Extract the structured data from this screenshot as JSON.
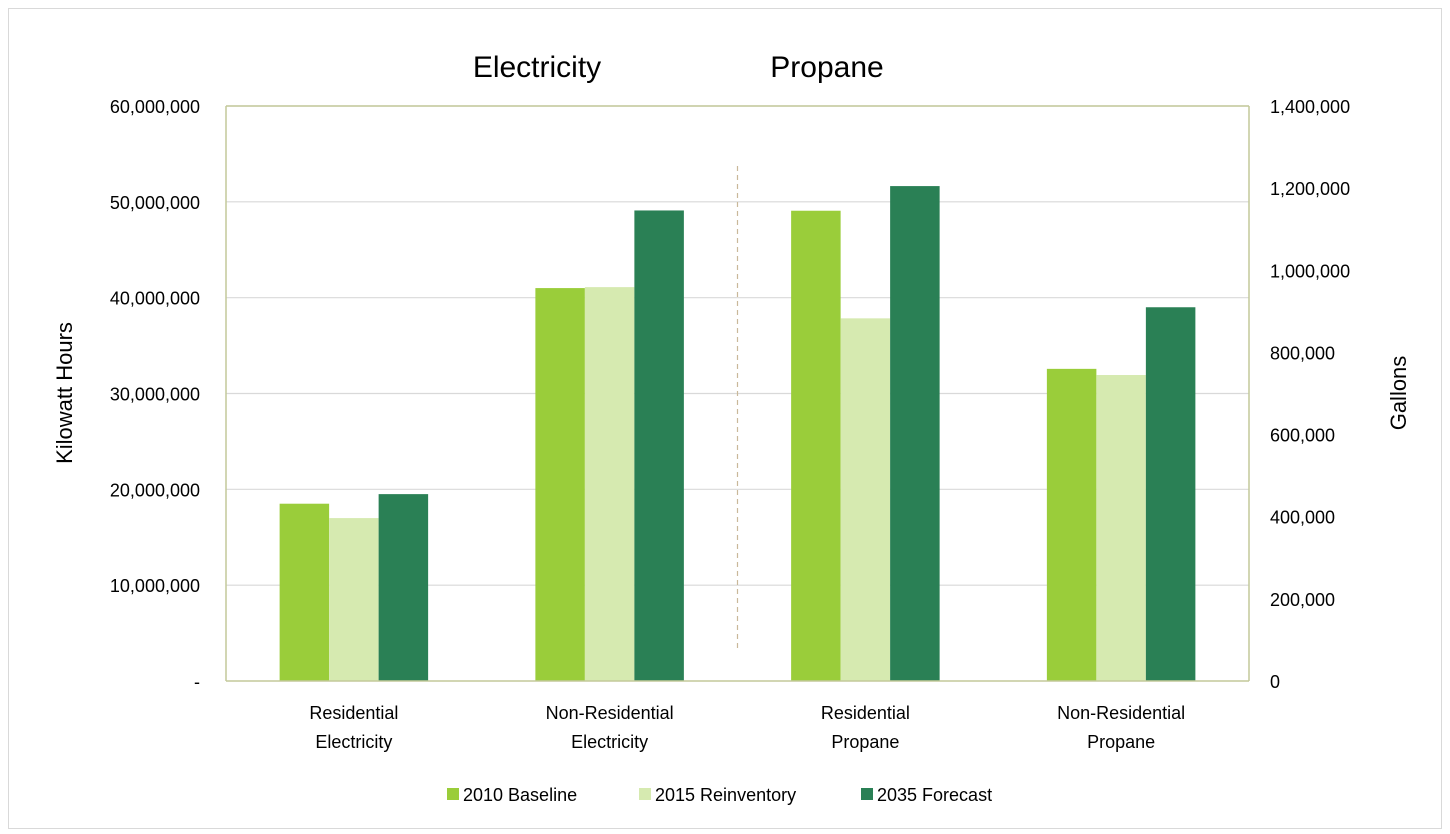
{
  "chart_data": {
    "type": "bar",
    "section_titles": [
      "Electricity",
      "Propane"
    ],
    "categories": [
      [
        "Residential",
        "Electricity"
      ],
      [
        "Non-Residential",
        "Electricity"
      ],
      [
        "Residential",
        "Propane"
      ],
      [
        "Non-Residential",
        "Propane"
      ]
    ],
    "series": [
      {
        "name": "2010 Baseline",
        "color": "#9acd3a",
        "values": [
          18500000,
          41000000,
          1145000,
          760000
        ]
      },
      {
        "name": "2015 Reinventory",
        "color": "#d6eab0",
        "values": [
          17000000,
          41100000,
          883000,
          745000
        ]
      },
      {
        "name": "2035 Forecast",
        "color": "#2a8055",
        "values": [
          19500000,
          49100000,
          1205000,
          910000
        ]
      }
    ],
    "category_axis": [
      "left",
      "left",
      "right",
      "right"
    ],
    "y_left": {
      "label": "Kilowatt Hours",
      "min": 0,
      "max": 60000000,
      "step": 10000000,
      "tick_labels": [
        "-",
        "10,000,000",
        "20,000,000",
        "30,000,000",
        "40,000,000",
        "50,000,000",
        "60,000,000"
      ]
    },
    "y_right": {
      "label": "Gallons",
      "min": 0,
      "max": 1400000,
      "step": 200000,
      "tick_labels": [
        "0",
        "200,000",
        "400,000",
        "600,000",
        "800,000",
        "1,000,000",
        "1,200,000",
        "1,400,000"
      ]
    },
    "grid": true,
    "legend_position": "bottom",
    "divider": "dashed line between Electricity and Propane groups",
    "colors": {
      "plot_border": "#c3c99a",
      "gridline": "#d9d9d9",
      "divider": "#c9b89a",
      "outer_border": "#d9d9d9"
    }
  }
}
